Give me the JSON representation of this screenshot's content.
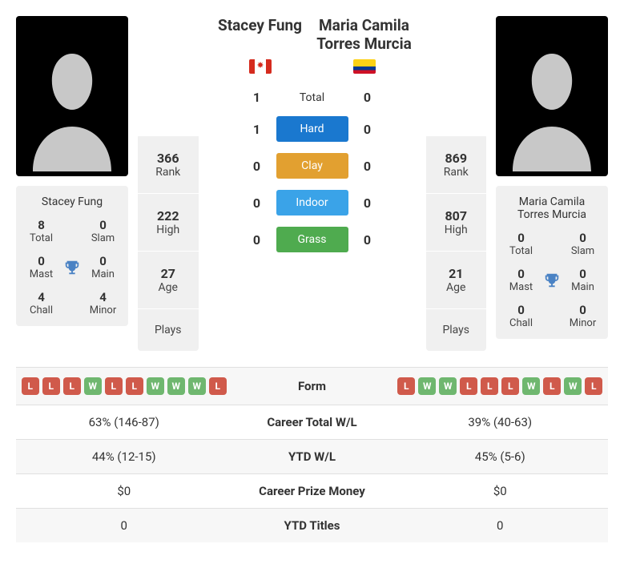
{
  "players": {
    "p1": {
      "name": "Stacey Fung",
      "flag": "canada",
      "titles": {
        "total": "8",
        "slam": "0",
        "mast": "0",
        "main": "0",
        "chall": "4",
        "minor": "4"
      },
      "stats": {
        "rank": "366",
        "high": "222",
        "age": "27",
        "plays": ""
      }
    },
    "p2": {
      "name": "Maria Camila Torres Murcia",
      "flag": "colombia",
      "titles": {
        "total": "0",
        "slam": "0",
        "mast": "0",
        "main": "0",
        "chall": "0",
        "minor": "0"
      },
      "stats": {
        "rank": "869",
        "high": "807",
        "age": "21",
        "plays": ""
      }
    }
  },
  "title_labels": {
    "total": "Total",
    "slam": "Slam",
    "mast": "Mast",
    "main": "Main",
    "chall": "Chall",
    "minor": "Minor"
  },
  "stat_labels": {
    "rank": "Rank",
    "high": "High",
    "age": "Age",
    "plays": "Plays"
  },
  "h2h": {
    "surfaces": [
      {
        "label": "Total",
        "p1": "1",
        "p2": "0",
        "badge": false
      },
      {
        "label": "Hard",
        "p1": "1",
        "p2": "0",
        "badge": true,
        "color": "#1a78cf"
      },
      {
        "label": "Clay",
        "p1": "0",
        "p2": "0",
        "badge": true,
        "color": "#e2a030"
      },
      {
        "label": "Indoor",
        "p1": "0",
        "p2": "0",
        "badge": true,
        "color": "#3aa3e8"
      },
      {
        "label": "Grass",
        "p1": "0",
        "p2": "0",
        "badge": true,
        "color": "#4fab4f"
      }
    ]
  },
  "form": {
    "p1": [
      "L",
      "L",
      "L",
      "W",
      "L",
      "L",
      "W",
      "W",
      "W",
      "L"
    ],
    "p2": [
      "L",
      "W",
      "W",
      "L",
      "L",
      "L",
      "W",
      "L",
      "W",
      "L"
    ]
  },
  "table": {
    "rows": [
      {
        "label": "Form",
        "type": "form"
      },
      {
        "label": "Career Total W/L",
        "p1": "63% (146-87)",
        "p2": "39% (40-63)"
      },
      {
        "label": "YTD W/L",
        "p1": "44% (12-15)",
        "p2": "45% (5-6)"
      },
      {
        "label": "Career Prize Money",
        "p1": "$0",
        "p2": "$0"
      },
      {
        "label": "YTD Titles",
        "p1": "0",
        "p2": "0"
      }
    ]
  },
  "colors": {
    "silhouette": "#c8c8c8",
    "card_bg": "#f0f0f0"
  }
}
